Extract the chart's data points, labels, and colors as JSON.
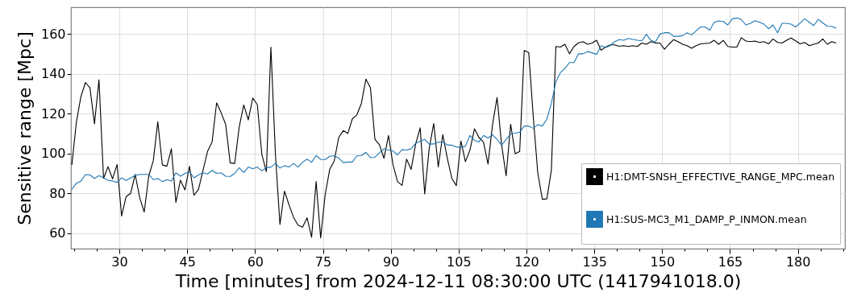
{
  "chart_data": {
    "type": "line",
    "xlabel": "Time [minutes] from 2024-12-11 08:30:00 UTC (1417941018.0)",
    "ylabel": "Sensitive range [Mpc]",
    "x": [
      19.5,
      20.5,
      21.5,
      22.5,
      23.5,
      24.5,
      25.5,
      26.5,
      27.5,
      28.5,
      29.5,
      30.5,
      31.5,
      32.5,
      33.5,
      34.5,
      35.5,
      36.5,
      37.5,
      38.5,
      39.5,
      40.5,
      41.5,
      42.5,
      43.5,
      44.5,
      45.5,
      46.5,
      47.5,
      48.5,
      49.5,
      50.5,
      51.5,
      52.5,
      53.5,
      54.5,
      55.5,
      56.5,
      57.5,
      58.5,
      59.5,
      60.5,
      61.5,
      62.5,
      63.5,
      64.5,
      65.5,
      66.5,
      67.5,
      68.5,
      69.5,
      70.5,
      71.5,
      72.5,
      73.5,
      74.5,
      75.5,
      76.5,
      77.5,
      78.5,
      79.5,
      80.5,
      81.5,
      82.5,
      83.5,
      84.5,
      85.5,
      86.5,
      87.5,
      88.5,
      89.5,
      90.5,
      91.5,
      92.5,
      93.5,
      94.5,
      95.5,
      96.5,
      97.5,
      98.5,
      99.5,
      100.5,
      101.5,
      102.5,
      103.5,
      104.5,
      105.5,
      106.5,
      107.5,
      108.5,
      109.5,
      110.5,
      111.5,
      112.5,
      113.5,
      114.5,
      115.5,
      116.5,
      117.5,
      118.5,
      119.5,
      120.5,
      121.5,
      122.5,
      123.5,
      124.5,
      125.5,
      126.5,
      127.5,
      128.5,
      129.5,
      130.5,
      131.5,
      132.5,
      133.5,
      134.5,
      135.5,
      136.5,
      137.5,
      138.5,
      139.5,
      140.5,
      141.5,
      142.5,
      143.5,
      144.5,
      145.5,
      146.5,
      147.5,
      148.5,
      149.5,
      150.5,
      151.5,
      152.5,
      153.5,
      154.5,
      155.5,
      156.5,
      157.5,
      158.5,
      159.5,
      160.5,
      161.5,
      162.5,
      163.5,
      164.5,
      165.5,
      166.5,
      167.5,
      168.5,
      169.5,
      170.5,
      171.5,
      172.5,
      173.5,
      174.5,
      175.5,
      176.5,
      177.5,
      178.5,
      179.5,
      180.5,
      181.5,
      182.5,
      183.5,
      184.5,
      185.5,
      186.5,
      187.5,
      188.5
    ],
    "series": [
      {
        "name": "H1:DMT-SNSH_EFFECTIVE_RANGE_MPC.mean",
        "color": "#000000",
        "values": [
          94.3,
          115.8,
          128.6,
          135.7,
          133,
          114.9,
          137.1,
          87.5,
          93.4,
          87.3,
          94.5,
          68.6,
          78.4,
          80,
          89.5,
          77.8,
          70.6,
          88.8,
          96.3,
          116,
          94.3,
          93.6,
          102.4,
          75.5,
          86.6,
          81.7,
          93.6,
          79,
          82.1,
          91.6,
          101.1,
          105.8,
          125.5,
          120.5,
          114.7,
          95.3,
          95,
          113.4,
          124.4,
          116.9,
          127.9,
          124.6,
          99.6,
          90.9,
          153.5,
          99.6,
          64.4,
          81.1,
          74.3,
          68,
          64,
          63,
          67.7,
          57.9,
          85.9,
          57.6,
          79.4,
          92,
          96.3,
          108.1,
          111.5,
          110.1,
          117.4,
          119.4,
          125.2,
          137.4,
          133.1,
          107.1,
          104.4,
          97.6,
          109.1,
          94.3,
          85.9,
          84,
          97.2,
          92,
          104.8,
          112.9,
          79.7,
          102.6,
          115.1,
          93.3,
          109.5,
          97.6,
          87.5,
          83.9,
          106.3,
          95.9,
          101.7,
          112.4,
          108.1,
          105.7,
          94.7,
          114.5,
          128.2,
          104.4,
          88.8,
          114.7,
          99.9,
          101,
          151.8,
          150.8,
          118.5,
          90.2,
          77,
          77.2,
          91.6,
          153.8,
          153.5,
          154.9,
          150.1,
          153.8,
          155.6,
          156.2,
          154.9,
          155.5,
          156.9,
          151.9,
          153.5,
          154.6,
          154.6,
          153.9,
          154.2,
          153.8,
          154.2,
          153.8,
          155.5,
          154.9,
          156.2,
          155.5,
          155.5,
          152.4,
          154.9,
          157.2,
          156.2,
          154.9,
          154.2,
          152.9,
          154.2,
          155.1,
          155.3,
          155.5,
          156.9,
          154.9,
          156.9,
          153.8,
          153.5,
          153.5,
          158.2,
          156.5,
          156.2,
          156.5,
          155.8,
          156.2,
          155.1,
          157.6,
          155.8,
          155.5,
          156.9,
          158,
          156.6,
          155.1,
          155.8,
          154.2,
          154.9,
          155.5,
          157.6,
          154.9,
          156.2,
          155.5
        ]
      },
      {
        "name": "H1:SUS-MC3_M1_DAMP_P_INMON.mean",
        "color": "#1f77b4",
        "values": [
          81.9,
          85.1,
          86.2,
          89.4,
          89.3,
          87.5,
          88.9,
          87.8,
          86.6,
          86.2,
          85.5,
          87.8,
          86.5,
          87.8,
          88.9,
          89.5,
          89.5,
          89.5,
          86.9,
          87.5,
          85.9,
          86.9,
          86.2,
          90.3,
          88.6,
          90,
          90.9,
          87.8,
          89.3,
          90.3,
          89.7,
          91.6,
          90,
          90.3,
          88.6,
          88.5,
          90,
          92.9,
          90.5,
          93.2,
          92.3,
          93.2,
          91.3,
          92.9,
          93.2,
          95,
          92.7,
          93.9,
          93.2,
          95,
          93.2,
          95.6,
          97.2,
          95.6,
          99,
          97,
          97,
          98.6,
          98.9,
          97.7,
          95.4,
          95.7,
          95.7,
          98.8,
          99,
          100.6,
          97.9,
          98.1,
          100.4,
          102.4,
          101.7,
          101.3,
          99.3,
          102,
          101.7,
          102.4,
          105.1,
          106.2,
          107.1,
          104.7,
          104.8,
          105.8,
          105.8,
          104.3,
          104.2,
          103.3,
          103.1,
          103.7,
          109.1,
          106.7,
          105.8,
          109.1,
          107.8,
          109.4,
          107.1,
          104.2,
          107.1,
          109.8,
          110.2,
          110.7,
          113.8,
          113.8,
          112.7,
          114.5,
          113.8,
          117.2,
          125.2,
          136,
          140.7,
          142.7,
          145.7,
          145.7,
          150.1,
          150.1,
          151.2,
          150.6,
          149.8,
          154.2,
          153.3,
          154.2,
          156.2,
          157.2,
          156.9,
          157.8,
          157.3,
          156.9,
          156.6,
          159.9,
          156.9,
          156,
          160,
          160.7,
          160.7,
          158.9,
          158.9,
          159.2,
          160.7,
          159.6,
          161.6,
          163.6,
          163.6,
          162,
          165.9,
          166.6,
          166.3,
          164.6,
          167.7,
          168.1,
          167.3,
          164.6,
          165.4,
          166.7,
          166,
          165,
          162.7,
          164.6,
          160.7,
          165.4,
          165.4,
          165,
          163.6,
          165.6,
          167.7,
          166,
          164.3,
          167.4,
          165.6,
          164,
          163.9,
          163
        ]
      }
    ],
    "xlim": [
      19.3,
      190.4
    ],
    "xticks": [
      {
        "value": 20,
        "label": null
      },
      {
        "value": 25,
        "label": null
      },
      30,
      {
        "value": 35,
        "label": null
      },
      {
        "value": 40,
        "label": null
      },
      45,
      {
        "value": 50,
        "label": null
      },
      {
        "value": 55,
        "label": null
      },
      60,
      {
        "value": 65,
        "label": null
      },
      {
        "value": 70,
        "label": null
      },
      75,
      {
        "value": 80,
        "label": null
      },
      {
        "value": 85,
        "label": null
      },
      90,
      {
        "value": 95,
        "label": null
      },
      {
        "value": 100,
        "label": null
      },
      105,
      {
        "value": 110,
        "label": null
      },
      {
        "value": 115,
        "label": null
      },
      120,
      {
        "value": 125,
        "label": null
      },
      {
        "value": 130,
        "label": null
      },
      135,
      {
        "value": 140,
        "label": null
      },
      {
        "value": 145,
        "label": null
      },
      150,
      {
        "value": 155,
        "label": null
      },
      {
        "value": 160,
        "label": null
      },
      165,
      {
        "value": 170,
        "label": null
      },
      {
        "value": 175,
        "label": null
      },
      180,
      {
        "value": 185,
        "label": null
      },
      {
        "value": 190,
        "label": null
      }
    ],
    "ylim": [
      52.2,
      173.5
    ],
    "yticks": [
      60,
      80,
      100,
      120,
      140,
      160
    ],
    "grid": true,
    "legend": "bottom right"
  }
}
